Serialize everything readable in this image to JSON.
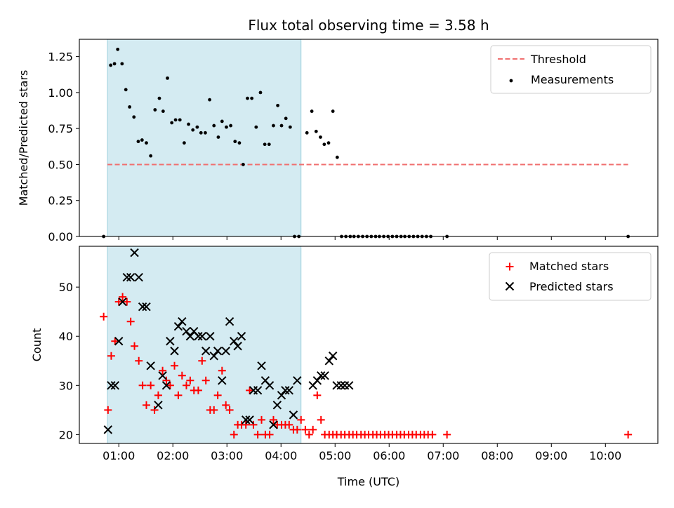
{
  "figure_title": "Flux total observing time = 3.58 h",
  "chart_data": [
    {
      "type": "scatter",
      "panel": "top",
      "title": "Flux total observing time = 3.58 h",
      "ylabel": "Matched/Predicted stars",
      "xlabel": "",
      "xlim": [
        0.27,
        10.97
      ],
      "ylim": [
        0.0,
        1.37
      ],
      "yticks": [
        0.0,
        0.25,
        0.5,
        0.75,
        1.0,
        1.25
      ],
      "ytick_labels": [
        "0.00",
        "0.25",
        "0.50",
        "0.75",
        "1.00",
        "1.25"
      ],
      "shaded_span": [
        0.79,
        4.37
      ],
      "threshold": {
        "name": "Threshold",
        "value": 0.5,
        "x_range": [
          0.79,
          10.42
        ],
        "color": "#f07070"
      },
      "legend": [
        "Threshold",
        "Measurements"
      ],
      "legend_position": "top-right",
      "series": [
        {
          "name": "Measurements",
          "color": "#000000",
          "x": [
            0.72,
            0.85,
            0.92,
            0.98,
            1.06,
            1.13,
            1.2,
            1.28,
            1.36,
            1.43,
            1.51,
            1.59,
            1.67,
            1.75,
            1.82,
            1.9,
            1.98,
            2.05,
            2.13,
            2.21,
            2.29,
            2.37,
            2.45,
            2.52,
            2.6,
            2.68,
            2.76,
            2.84,
            2.91,
            2.99,
            3.07,
            3.15,
            3.23,
            3.3,
            3.38,
            3.46,
            3.54,
            3.62,
            3.7,
            3.78,
            3.86,
            3.94,
            4.01,
            4.09,
            4.17,
            4.25,
            4.33,
            4.48,
            4.57,
            4.65,
            4.73,
            4.8,
            4.88,
            4.96,
            5.04,
            5.12,
            5.2,
            5.28,
            5.35,
            5.43,
            5.51,
            5.59,
            5.67,
            5.75,
            5.82,
            5.9,
            5.98,
            6.06,
            6.14,
            6.22,
            6.29,
            6.37,
            6.45,
            6.53,
            6.61,
            6.69,
            6.77,
            7.07,
            10.42
          ],
          "y": [
            0.0,
            1.19,
            1.2,
            1.3,
            1.2,
            1.02,
            0.9,
            0.83,
            0.66,
            0.67,
            0.65,
            0.56,
            0.88,
            0.96,
            0.87,
            1.1,
            0.79,
            0.81,
            0.81,
            0.65,
            0.78,
            0.74,
            0.76,
            0.72,
            0.72,
            0.95,
            0.77,
            0.69,
            0.8,
            0.76,
            0.77,
            0.66,
            0.65,
            0.5,
            0.96,
            0.96,
            0.76,
            1.0,
            0.64,
            0.64,
            0.77,
            0.91,
            0.77,
            0.82,
            0.76,
            0.0,
            0.0,
            0.72,
            0.87,
            0.73,
            0.69,
            0.64,
            0.65,
            0.87,
            0.55,
            0.0,
            0.0,
            0.0,
            0.0,
            0.0,
            0.0,
            0.0,
            0.0,
            0.0,
            0.0,
            0.0,
            0.0,
            0.0,
            0.0,
            0.0,
            0.0,
            0.0,
            0.0,
            0.0,
            0.0,
            0.0,
            0.0,
            0.0,
            0.0
          ]
        }
      ]
    },
    {
      "type": "scatter",
      "panel": "bottom",
      "title": "",
      "ylabel": "Count",
      "xlabel": "Time (UTC)",
      "xlim": [
        0.27,
        10.97
      ],
      "ylim": [
        18.2,
        58.3
      ],
      "xticks": [
        1,
        2,
        3,
        4,
        5,
        6,
        7,
        8,
        9,
        10
      ],
      "xtick_labels": [
        "01:00",
        "02:00",
        "03:00",
        "04:00",
        "05:00",
        "06:00",
        "07:00",
        "08:00",
        "09:00",
        "10:00"
      ],
      "yticks": [
        20,
        30,
        40,
        50
      ],
      "ytick_labels": [
        "20",
        "30",
        "40",
        "50"
      ],
      "shaded_span": [
        0.79,
        4.37
      ],
      "legend": [
        "Matched stars",
        "Predicted stars"
      ],
      "legend_position": "top-right",
      "series": [
        {
          "name": "Matched stars",
          "marker": "plus",
          "color": "#ff0000",
          "x": [
            0.72,
            0.8,
            0.86,
            0.93,
            1.0,
            1.07,
            1.15,
            1.22,
            1.29,
            1.37,
            1.44,
            1.51,
            1.59,
            1.66,
            1.73,
            1.81,
            1.88,
            1.95,
            2.03,
            2.1,
            2.17,
            2.25,
            2.32,
            2.39,
            2.47,
            2.54,
            2.61,
            2.69,
            2.76,
            2.83,
            2.91,
            2.98,
            3.05,
            3.13,
            3.2,
            3.27,
            3.35,
            3.42,
            3.49,
            3.57,
            3.64,
            3.71,
            3.79,
            3.86,
            3.93,
            4.01,
            4.08,
            4.15,
            4.23,
            4.3,
            4.37,
            4.45,
            4.52,
            4.59,
            4.67,
            4.74,
            4.81,
            4.89,
            4.96,
            5.03,
            5.11,
            5.18,
            5.26,
            5.33,
            5.4,
            5.48,
            5.55,
            5.62,
            5.7,
            5.77,
            5.84,
            5.92,
            5.99,
            6.06,
            6.14,
            6.21,
            6.28,
            6.36,
            6.43,
            6.5,
            6.58,
            6.65,
            6.72,
            6.8,
            7.07,
            10.42
          ],
          "y": [
            44,
            25,
            36,
            39,
            47,
            48,
            47,
            43,
            38,
            35,
            30,
            26,
            30,
            25,
            28,
            33,
            31,
            30,
            34,
            28,
            32,
            30,
            31,
            29,
            29,
            35,
            31,
            25,
            25,
            28,
            33,
            26,
            25,
            20,
            22,
            22,
            22,
            29,
            22,
            20,
            23,
            20,
            20,
            23,
            22,
            22,
            22,
            22,
            21,
            21,
            23,
            21,
            20,
            21,
            28,
            23,
            20,
            20,
            20,
            20,
            20,
            20,
            20,
            20,
            20,
            20,
            20,
            20,
            20,
            20,
            20,
            20,
            20,
            20,
            20,
            20,
            20,
            20,
            20,
            20,
            20,
            20,
            20,
            20,
            20,
            20
          ]
        },
        {
          "name": "Predicted stars",
          "marker": "x",
          "color": "#000000",
          "x": [
            0.8,
            0.86,
            0.93,
            1.0,
            1.07,
            1.15,
            1.22,
            1.29,
            1.37,
            1.44,
            1.51,
            1.59,
            1.73,
            1.81,
            1.88,
            1.95,
            2.03,
            2.1,
            2.17,
            2.25,
            2.32,
            2.39,
            2.47,
            2.54,
            2.61,
            2.69,
            2.76,
            2.83,
            2.91,
            2.98,
            3.05,
            3.13,
            3.2,
            3.27,
            3.35,
            3.42,
            3.49,
            3.57,
            3.64,
            3.71,
            3.79,
            3.86,
            3.93,
            4.01,
            4.08,
            4.15,
            4.23,
            4.3,
            4.59,
            4.67,
            4.74,
            4.81,
            4.89,
            4.96,
            5.03,
            5.11,
            5.18,
            5.26
          ],
          "y": [
            21,
            30,
            30,
            39,
            47,
            52,
            52,
            57,
            52,
            46,
            46,
            34,
            26,
            32,
            30,
            39,
            37,
            42,
            43,
            41,
            40,
            41,
            40,
            40,
            37,
            40,
            36,
            37,
            31,
            37,
            43,
            39,
            38,
            40,
            23,
            23,
            29,
            29,
            34,
            31,
            30,
            22,
            26,
            28,
            29,
            29,
            24,
            31,
            30,
            31,
            32,
            32,
            35,
            36,
            30,
            30,
            30,
            30
          ]
        }
      ]
    }
  ]
}
